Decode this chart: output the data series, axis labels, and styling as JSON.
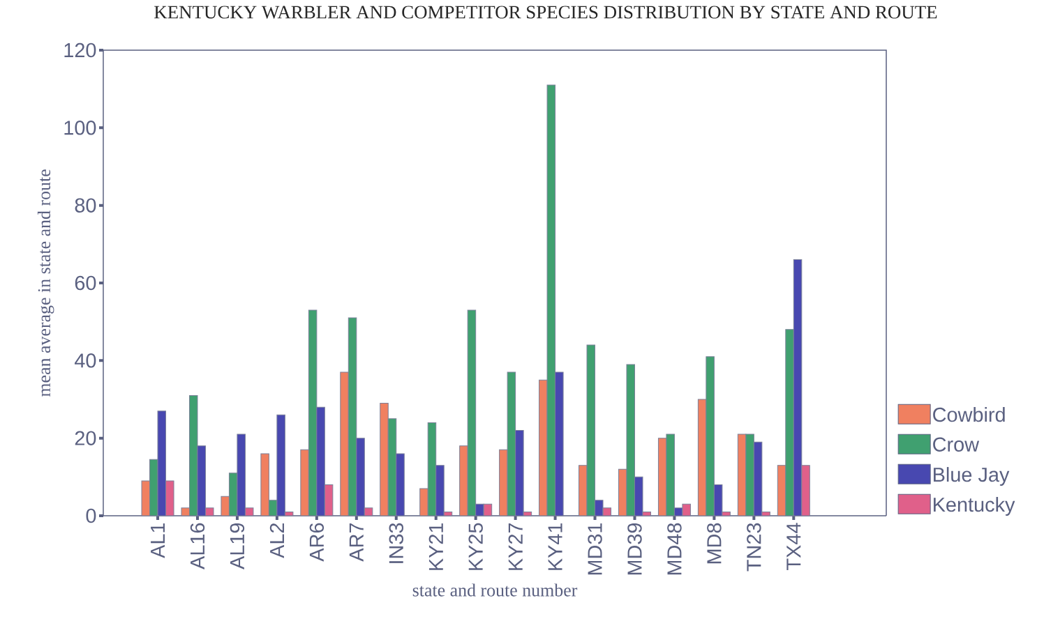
{
  "chart_data": {
    "type": "bar",
    "title": "KENTUCKY WARBLER AND COMPETITOR SPECIES DISTRIBUTION BY STATE AND ROUTE",
    "xlabel": "state and route number",
    "ylabel": "mean average in state and route",
    "categories": [
      "AL1",
      "AL16",
      "AL19",
      "AL2",
      "AR6",
      "AR7",
      "IN33",
      "KY21",
      "KY25",
      "KY27",
      "KY41",
      "MD31",
      "MD39",
      "MD48",
      "MD8",
      "TN23",
      "TX44"
    ],
    "series": [
      {
        "name": "Cowbird",
        "color": "#f08060",
        "values": [
          9,
          2,
          5,
          16,
          17,
          37,
          29,
          7,
          18,
          17,
          35,
          13,
          12,
          20,
          30,
          21,
          13
        ]
      },
      {
        "name": "Crow",
        "color": "#40a070",
        "values": [
          14.5,
          31,
          11,
          4,
          53,
          51,
          25,
          24,
          53,
          37,
          111,
          44,
          39,
          21,
          41,
          21,
          48
        ]
      },
      {
        "name": "Blue Jay",
        "color": "#4848b0",
        "values": [
          27,
          18,
          21,
          26,
          28,
          20,
          16,
          13,
          3,
          22,
          37,
          4,
          10,
          2,
          8,
          19,
          66
        ]
      },
      {
        "name": "Kentucky",
        "color": "#e0608a",
        "values": [
          9,
          2,
          2,
          1,
          8,
          2,
          null,
          1,
          3,
          1,
          null,
          2,
          1,
          3,
          1,
          1,
          13
        ]
      }
    ],
    "ylim": [
      0,
      120
    ],
    "yticks": [
      0,
      20,
      40,
      60,
      80,
      100,
      120
    ],
    "legend": "right",
    "grid": false
  }
}
